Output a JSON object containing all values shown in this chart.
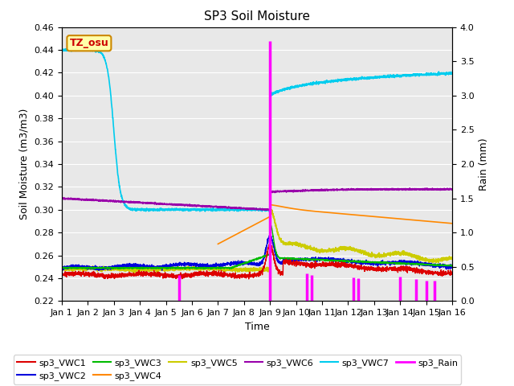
{
  "title": "SP3 Soil Moisture",
  "xlabel": "Time",
  "ylabel_left": "Soil Moisture (m3/m3)",
  "ylabel_right": "Rain (mm)",
  "ylim_left": [
    0.22,
    0.46
  ],
  "ylim_right": [
    0.0,
    4.0
  ],
  "yticks_left": [
    0.22,
    0.24,
    0.26,
    0.28,
    0.3,
    0.32,
    0.34,
    0.36,
    0.38,
    0.4,
    0.42,
    0.44,
    0.46
  ],
  "yticks_right": [
    0.0,
    0.5,
    1.0,
    1.5,
    2.0,
    2.5,
    3.0,
    3.5,
    4.0
  ],
  "xtick_labels": [
    "Jan 1",
    "Jan 2",
    "Jan 3",
    "Jan 4",
    "Jan 5",
    "Jan 6",
    "Jan 7",
    "Jan 8",
    "Jan 9",
    "Jan 10",
    "Jan 11",
    "Jan 12",
    "Jan 13",
    "Jan 14",
    "Jan 15",
    "Jan 16"
  ],
  "colors": {
    "sp3_VWC1": "#dd0000",
    "sp3_VWC2": "#0000dd",
    "sp3_VWC3": "#00bb00",
    "sp3_VWC4": "#ff8800",
    "sp3_VWC5": "#cccc00",
    "sp3_VWC6": "#9900aa",
    "sp3_VWC7": "#00ccee",
    "sp3_Rain": "#ff00ff"
  },
  "annotation_box": {
    "text": "TZ_osu",
    "facecolor": "#ffffaa",
    "edgecolor": "#cc8800",
    "textcolor": "#cc0000"
  },
  "fig_facecolor": "#ffffff",
  "axes_facecolor": "#e8e8e8",
  "grid_color": "#ffffff"
}
